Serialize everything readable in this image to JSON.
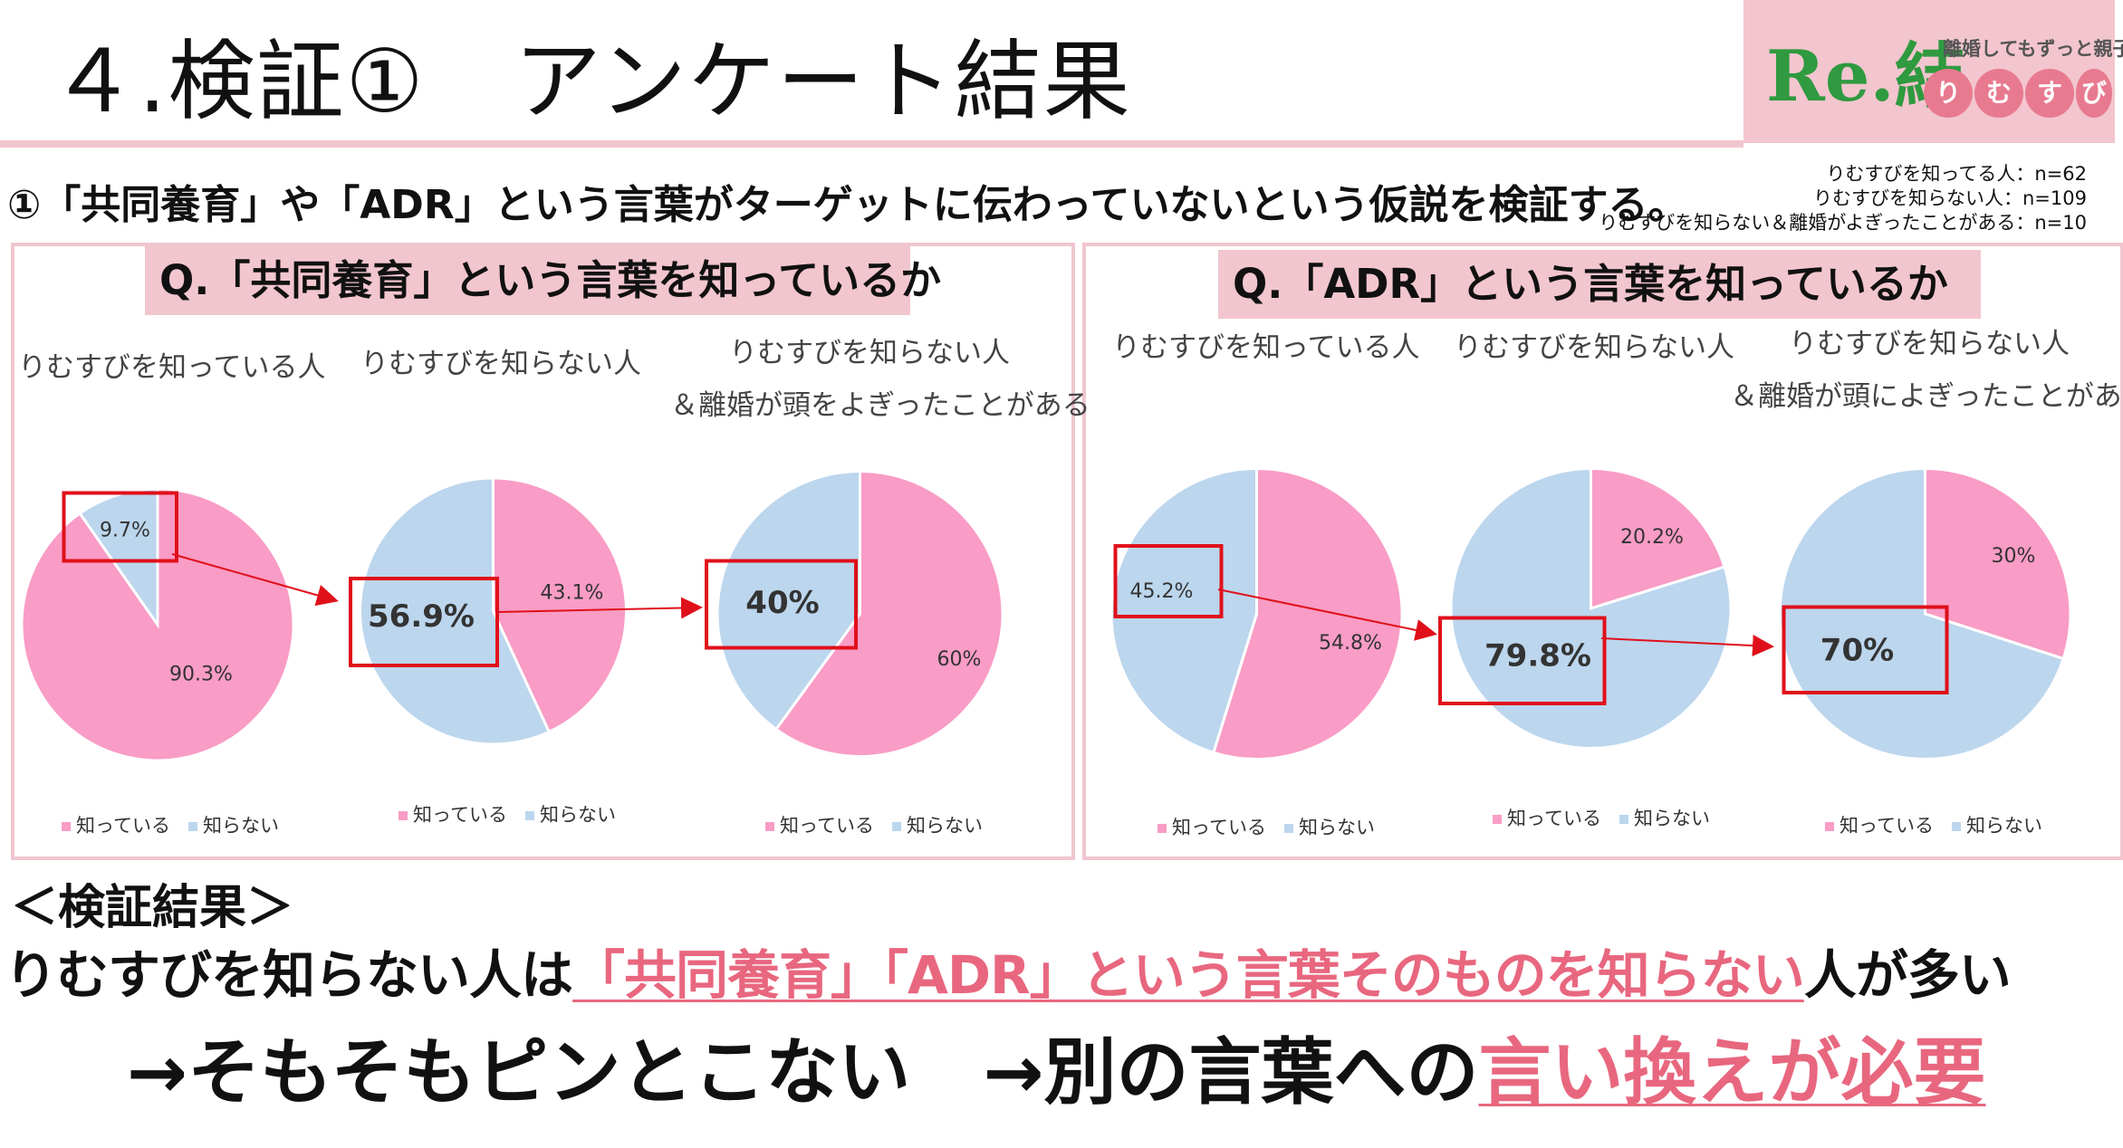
{
  "header": {
    "title": "４.検証①　アンケート結果"
  },
  "logo": {
    "tagline": "離婚してもずっと親子",
    "mark": "Re.結",
    "circles": [
      "り",
      "む",
      "す",
      "び"
    ],
    "circle_colors": [
      "#e87a8f",
      "#e87a8f",
      "#e87a8f",
      "#e87a8f"
    ]
  },
  "subtitle": "①「共同養育」や「ADR」という言葉がターゲットに伝わっていないという仮説を検証する。",
  "sample_sizes": [
    "りむすびを知ってる人：n=62",
    "りむすびを知らない人：n=109",
    "りむすびを知らない＆離婚がよぎったことがある：n=10"
  ],
  "panels": [
    {
      "question": "Q.「共同養育」という言葉を知っているか",
      "groups": [
        {
          "label": "りむすびを知っている人",
          "label2": ""
        },
        {
          "label": "りむすびを知らない人",
          "label2": ""
        },
        {
          "label": "りむすびを知らない人",
          "label2": "＆離婚が頭をよぎったことがある"
        }
      ]
    },
    {
      "question": "Q.「ADR」という言葉を知っているか",
      "groups": [
        {
          "label": "りむすびを知っている人",
          "label2": ""
        },
        {
          "label": "りむすびを知らない人",
          "label2": ""
        },
        {
          "label": "りむすびを知らない人",
          "label2": "＆離婚が頭によぎったことがある"
        }
      ]
    }
  ],
  "legend": {
    "known": "知っている",
    "unknown": "知らない"
  },
  "colors": {
    "known": "#f99cc6",
    "unknown": "#bcd6ee",
    "highlight": "#e8677f",
    "box": "#e0101a",
    "panel_border": "#f0c6cf",
    "qbox": "#f2c6cf"
  },
  "chart_data": [
    {
      "type": "pie",
      "title": "Q.「共同養育」という言葉を知っているか — りむすびを知っている人",
      "categories": [
        "知っている",
        "知らない"
      ],
      "values": [
        90.3,
        9.7
      ],
      "labels": [
        "90.3%",
        "9.7%"
      ],
      "highlight": "知らない"
    },
    {
      "type": "pie",
      "title": "Q.「共同養育」という言葉を知っているか — りむすびを知らない人",
      "categories": [
        "知っている",
        "知らない"
      ],
      "values": [
        43.1,
        56.9
      ],
      "labels": [
        "43.1%",
        "56.9%"
      ],
      "highlight": "知らない"
    },
    {
      "type": "pie",
      "title": "Q.「共同養育」という言葉を知っているか — りむすびを知らない人＆離婚が頭をよぎったことがある",
      "categories": [
        "知っている",
        "知らない"
      ],
      "values": [
        60,
        40
      ],
      "labels": [
        "60%",
        "40%"
      ],
      "highlight": "知らない"
    },
    {
      "type": "pie",
      "title": "Q.「ADR」という言葉を知っているか — りむすびを知っている人",
      "categories": [
        "知っている",
        "知らない"
      ],
      "values": [
        54.8,
        45.2
      ],
      "labels": [
        "54.8%",
        "45.2%"
      ],
      "highlight": "知らない"
    },
    {
      "type": "pie",
      "title": "Q.「ADR」という言葉を知っているか — りむすびを知らない人",
      "categories": [
        "知っている",
        "知らない"
      ],
      "values": [
        20.2,
        79.8
      ],
      "labels": [
        "20.2%",
        "79.8%"
      ],
      "highlight": "知らない"
    },
    {
      "type": "pie",
      "title": "Q.「ADR」という言葉を知っているか — りむすびを知らない人＆離婚が頭によぎったことがある",
      "categories": [
        "知っている",
        "知らない"
      ],
      "values": [
        30,
        70
      ],
      "labels": [
        "30%",
        "70%"
      ],
      "highlight": "知らない"
    }
  ],
  "result": {
    "heading": "＜検証結果＞",
    "line1_pre": "りむすびを知らない人は",
    "line1_hl": "「共同養育」「ADR」という言葉そのものを知らない",
    "line1_post": "人が多い",
    "line2_a": "→そもそもピンとこない",
    "line2_b": "→別の言葉への",
    "line2_hl": "言い換えが必要"
  }
}
